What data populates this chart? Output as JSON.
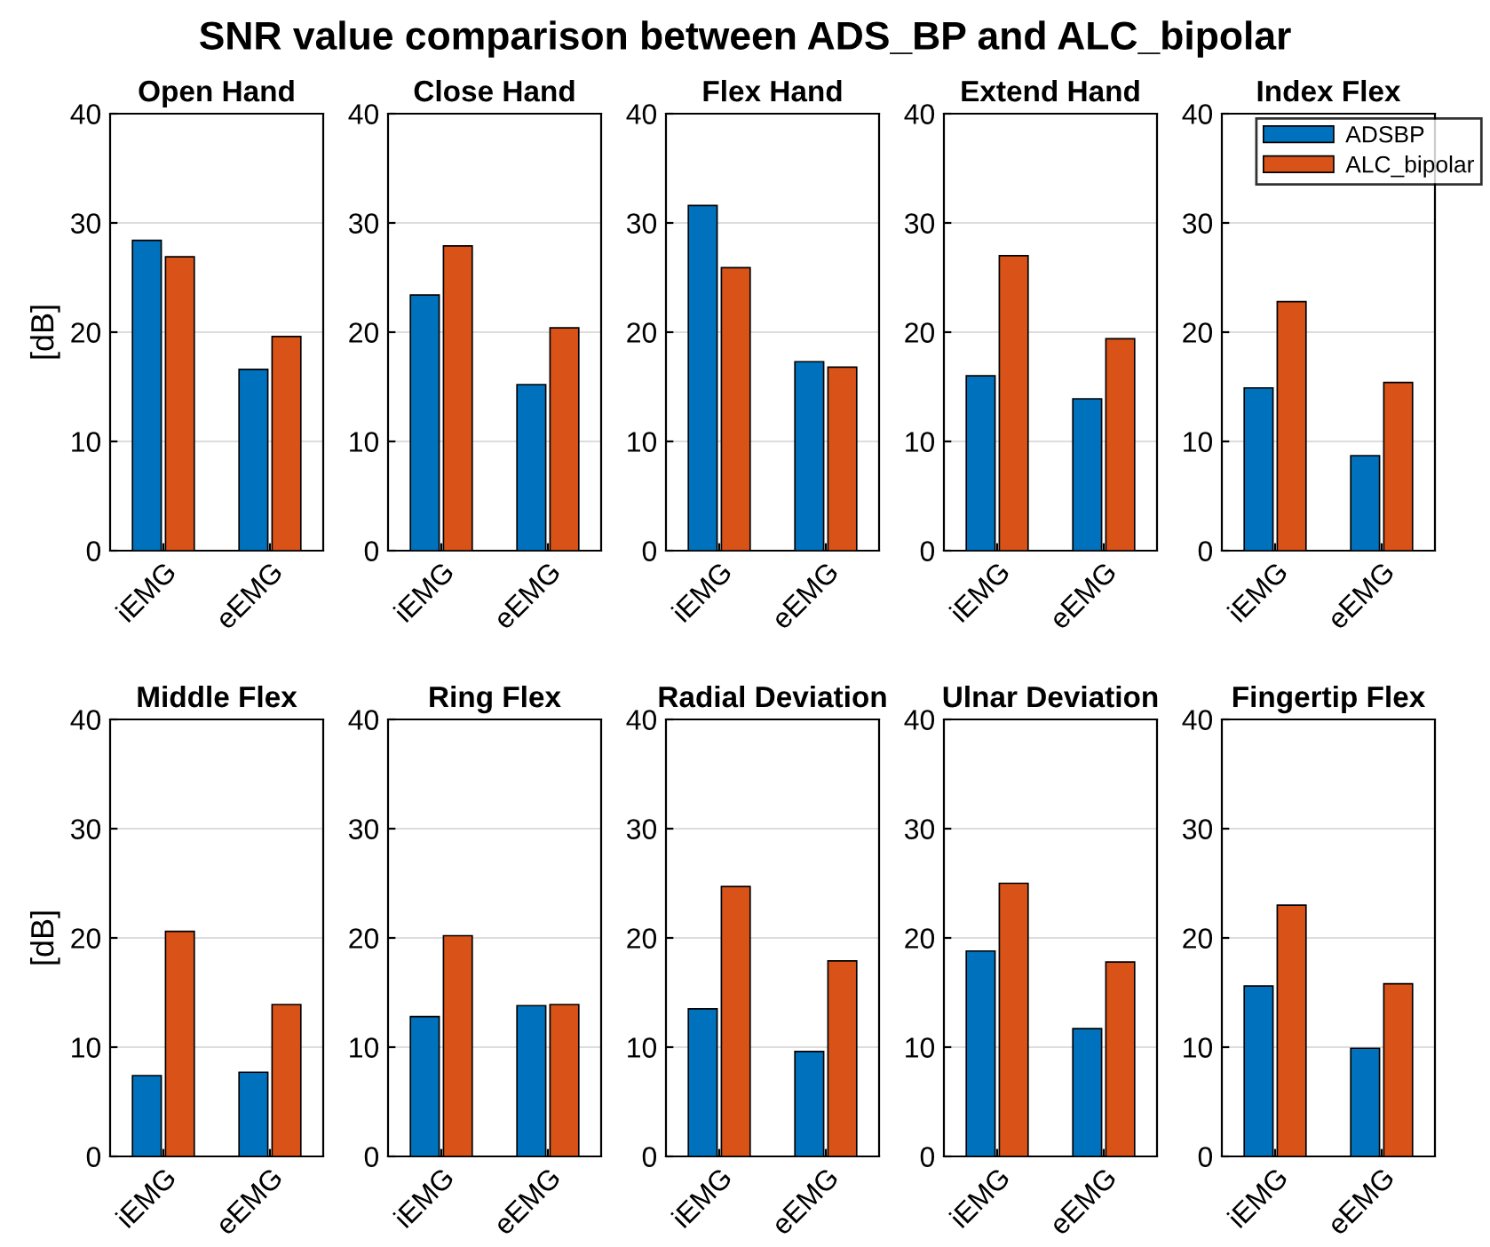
{
  "chart_data": [
    {
      "type": "bar",
      "title": "Open Hand",
      "ylabel": "[dB]",
      "annotations": [
        "SNR value comparison between ADS_BP and ALC_bipolar"
      ],
      "categories": [
        "iEMG",
        "eEMG"
      ],
      "series": [
        {
          "color": "#0072bd",
          "values": [
            28.4,
            16.6
          ]
        },
        {
          "color": "#d95319",
          "values": [
            26.9,
            19.6
          ]
        }
      ],
      "ylim": [
        0,
        40
      ],
      "yticks": [
        0,
        10,
        20,
        30,
        40
      ],
      "grid": "y"
    },
    {
      "type": "bar",
      "title": "Close Hand",
      "categories": [
        "iEMG",
        "eEMG"
      ],
      "series": [
        {
          "color": "#0072bd",
          "values": [
            23.4,
            15.2
          ]
        },
        {
          "color": "#d95319",
          "values": [
            27.9,
            20.4
          ]
        }
      ],
      "ylim": [
        0,
        40
      ],
      "yticks": [
        0,
        10,
        20,
        30,
        40
      ],
      "grid": "y"
    },
    {
      "type": "bar",
      "title": "Flex Hand",
      "categories": [
        "iEMG",
        "eEMG"
      ],
      "series": [
        {
          "color": "#0072bd",
          "values": [
            31.6,
            17.3
          ]
        },
        {
          "color": "#d95319",
          "values": [
            25.9,
            16.8
          ]
        }
      ],
      "ylim": [
        0,
        40
      ],
      "yticks": [
        0,
        10,
        20,
        30,
        40
      ],
      "grid": "y"
    },
    {
      "type": "bar",
      "title": "Extend Hand",
      "categories": [
        "iEMG",
        "eEMG"
      ],
      "series": [
        {
          "color": "#0072bd",
          "values": [
            16.0,
            13.9
          ]
        },
        {
          "color": "#d95319",
          "values": [
            27.0,
            19.4
          ]
        }
      ],
      "ylim": [
        0,
        40
      ],
      "yticks": [
        0,
        10,
        20,
        30,
        40
      ],
      "grid": "y"
    },
    {
      "type": "bar",
      "title": "Index Flex",
      "categories": [
        "iEMG",
        "eEMG"
      ],
      "series": [
        {
          "name": "ADSBP",
          "color": "#0072bd",
          "values": [
            14.9,
            8.7
          ]
        },
        {
          "name": "ALC_bipolar",
          "color": "#d95319",
          "values": [
            22.8,
            15.4
          ]
        }
      ],
      "ylim": [
        0,
        40
      ],
      "yticks": [
        0,
        10,
        20,
        30,
        40
      ],
      "grid": "y",
      "legend": "top right"
    },
    {
      "type": "bar",
      "title": "Middle Flex",
      "ylabel": "[dB]",
      "categories": [
        "iEMG",
        "eEMG"
      ],
      "series": [
        {
          "color": "#0072bd",
          "values": [
            7.4,
            7.7
          ]
        },
        {
          "color": "#d95319",
          "values": [
            20.6,
            13.9
          ]
        }
      ],
      "ylim": [
        0,
        40
      ],
      "yticks": [
        0,
        10,
        20,
        30,
        40
      ],
      "grid": "y"
    },
    {
      "type": "bar",
      "title": "Ring Flex",
      "categories": [
        "iEMG",
        "eEMG"
      ],
      "series": [
        {
          "color": "#0072bd",
          "values": [
            12.8,
            13.8
          ]
        },
        {
          "color": "#d95319",
          "values": [
            20.2,
            13.9
          ]
        }
      ],
      "ylim": [
        0,
        40
      ],
      "yticks": [
        0,
        10,
        20,
        30,
        40
      ],
      "grid": "y"
    },
    {
      "type": "bar",
      "title": "Radial Deviation",
      "categories": [
        "iEMG",
        "eEMG"
      ],
      "series": [
        {
          "color": "#0072bd",
          "values": [
            13.5,
            9.6
          ]
        },
        {
          "color": "#d95319",
          "values": [
            24.7,
            17.9
          ]
        }
      ],
      "ylim": [
        0,
        40
      ],
      "yticks": [
        0,
        10,
        20,
        30,
        40
      ],
      "grid": "y"
    },
    {
      "type": "bar",
      "title": "Ulnar Deviation",
      "categories": [
        "iEMG",
        "eEMG"
      ],
      "series": [
        {
          "color": "#0072bd",
          "values": [
            18.8,
            11.7
          ]
        },
        {
          "color": "#d95319",
          "values": [
            25.0,
            17.8
          ]
        }
      ],
      "ylim": [
        0,
        40
      ],
      "yticks": [
        0,
        10,
        20,
        30,
        40
      ],
      "grid": "y"
    },
    {
      "type": "bar",
      "title": "Fingertip Flex",
      "categories": [
        "iEMG",
        "eEMG"
      ],
      "series": [
        {
          "color": "#0072bd",
          "values": [
            15.6,
            9.9
          ]
        },
        {
          "color": "#d95319",
          "values": [
            23.0,
            15.8
          ]
        }
      ],
      "ylim": [
        0,
        40
      ],
      "yticks": [
        0,
        10,
        20,
        30,
        40
      ],
      "grid": "y"
    }
  ]
}
